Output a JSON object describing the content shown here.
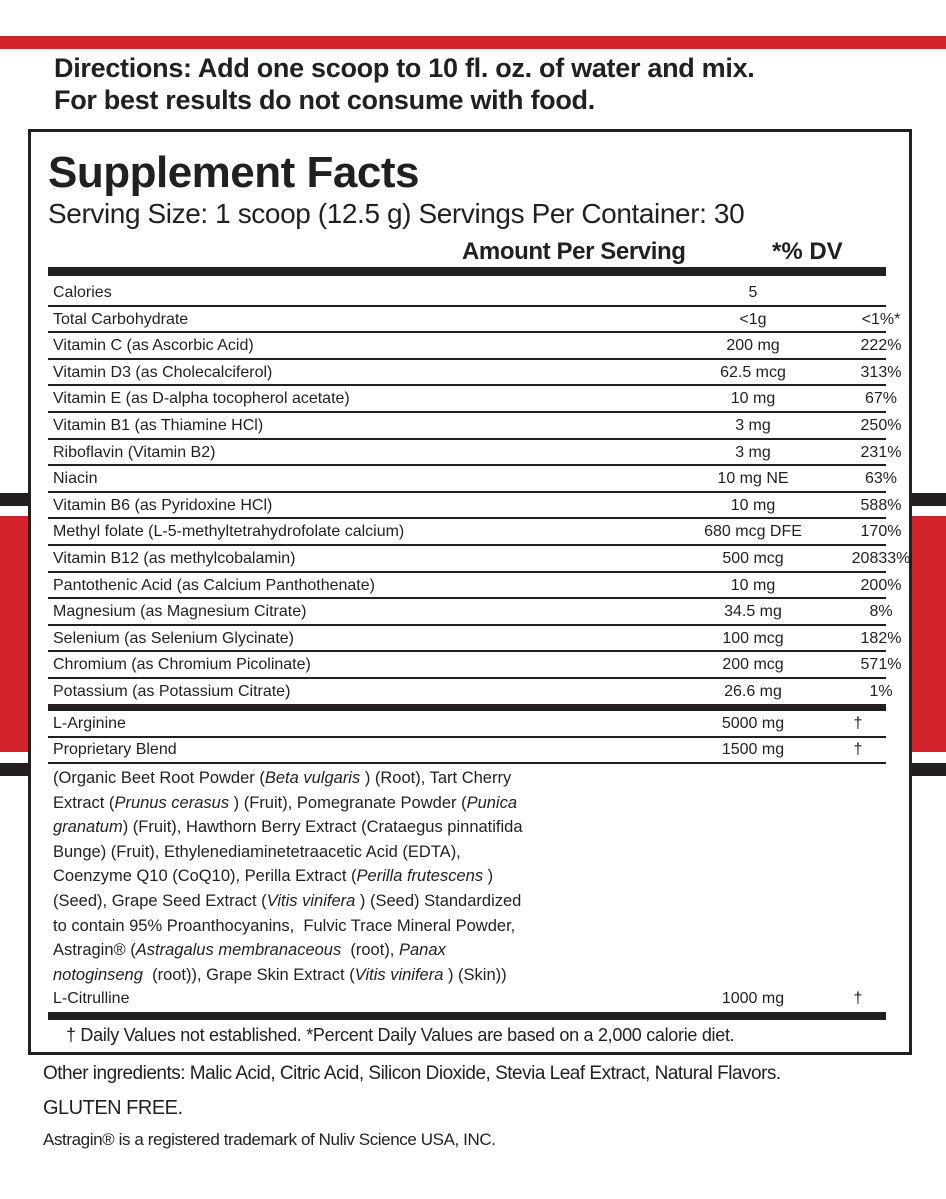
{
  "colors": {
    "accent_red": "#d2232a",
    "ink": "#231f20"
  },
  "directions": [
    "Directions: Add one scoop to 10 fl. oz. of water and mix.",
    "For best results do not consume with food."
  ],
  "title": "Supplement Facts",
  "serving": "Serving Size: 1 scoop (12.5 g)  Servings Per Container: 30",
  "headers": {
    "amount": "Amount Per Serving",
    "dv": "*% DV"
  },
  "nutrients": [
    {
      "name": "Calories",
      "amount": "5",
      "dv": ""
    },
    {
      "name": "Total Carbohydrate",
      "amount": "<1g",
      "dv": "<1%*"
    },
    {
      "name": "Vitamin C (as Ascorbic Acid)",
      "amount": "200 mg",
      "dv": "222%"
    },
    {
      "name": "Vitamin D3 (as Cholecalciferol)",
      "amount": "62.5 mcg",
      "dv": "313%"
    },
    {
      "name": "Vitamin E (as D-alpha tocopherol acetate)",
      "amount": "10 mg",
      "dv": "67%"
    },
    {
      "name": "Vitamin B1 (as Thiamine HCl)",
      "amount": "3 mg",
      "dv": "250%"
    },
    {
      "name": "Riboflavin (Vitamin B2)",
      "amount": "3 mg",
      "dv": "231%"
    },
    {
      "name": "Niacin",
      "amount": "10 mg NE",
      "dv": "63%"
    },
    {
      "name": "Vitamin B6 (as Pyridoxine HCl)",
      "amount": "10 mg",
      "dv": "588%"
    },
    {
      "name": "Methyl folate (L-5-methyltetrahydrofolate calcium)",
      "amount": "680 mcg DFE",
      "dv": "170%"
    },
    {
      "name": "Vitamin B12 (as methylcobalamin)",
      "amount": "500 mcg",
      "dv": "20833%"
    },
    {
      "name": "Pantothenic Acid (as Calcium Panthothenate)",
      "amount": "10 mg",
      "dv": "200%"
    },
    {
      "name": "Magnesium (as Magnesium Citrate)",
      "amount": "34.5 mg",
      "dv": "8%"
    },
    {
      "name": "Selenium (as Selenium Glycinate)",
      "amount": "100 mcg",
      "dv": "182%"
    },
    {
      "name": "Chromium (as Chromium Picolinate)",
      "amount": "200 mcg",
      "dv": "571%"
    },
    {
      "name": "Potassium (as Potassium Citrate)",
      "amount": "26.6 mg",
      "dv": "1%"
    }
  ],
  "others": [
    {
      "name": "L-Arginine",
      "amount": "5000 mg",
      "dv": "†"
    },
    {
      "name": "Proprietary Blend",
      "amount": "1500 mg",
      "dv": "†"
    }
  ],
  "blend_lines": [
    [
      [
        "(Organic Beet Root Powder (",
        0
      ],
      [
        "Beta vulgaris",
        1
      ],
      [
        " ) (Root), Tart Cherry",
        0
      ]
    ],
    [
      [
        "Extract (",
        0
      ],
      [
        "Prunus cerasus",
        1
      ],
      [
        " ) (Fruit), Pomegranate Powder (",
        0
      ],
      [
        "Punica",
        1
      ]
    ],
    [
      [
        "granatum",
        1
      ],
      [
        ") (Fruit), Hawthorn Berry Extract (Crataegus pinnatifida",
        0
      ]
    ],
    [
      [
        "Bunge) (Fruit), Ethylenediaminetetraacetic Acid (EDTA),",
        0
      ]
    ],
    [
      [
        "Coenzyme Q10 (CoQ10), Perilla Extract (",
        0
      ],
      [
        "Perilla frutescens",
        1
      ],
      [
        " )",
        0
      ]
    ],
    [
      [
        "(Seed), Grape Seed Extract (",
        0
      ],
      [
        "Vitis vinifera",
        1
      ],
      [
        " ) (Seed) Standardized",
        0
      ]
    ],
    [
      [
        "to contain 95% Proanthocyanins,  Fulvic Trace Mineral Powder,",
        0
      ]
    ],
    [
      [
        "Astragin® (",
        0
      ],
      [
        "Astragalus membranaceous",
        1
      ],
      [
        "  (root), ",
        0
      ],
      [
        "Panax",
        1
      ]
    ],
    [
      [
        "notoginseng",
        1
      ],
      [
        "  (root)), Grape Skin Extract (",
        0
      ],
      [
        "Vitis vinifera",
        1
      ],
      [
        " ) (Skin))",
        0
      ]
    ]
  ],
  "citrulline": {
    "name": "L-Citrulline",
    "amount": "1000 mg",
    "dv": "†"
  },
  "footnote": "† Daily Values not established.  *Percent Daily Values are based on a 2,000 calorie diet.",
  "other_ingredients": "Other ingredients:  Malic Acid, Citric Acid, Silicon Dioxide, Stevia Leaf Extract, Natural Flavors.",
  "gluten_free": "GLUTEN FREE.",
  "trademark": "Astragin® is a registered trademark of Nuliv Science USA, INC."
}
